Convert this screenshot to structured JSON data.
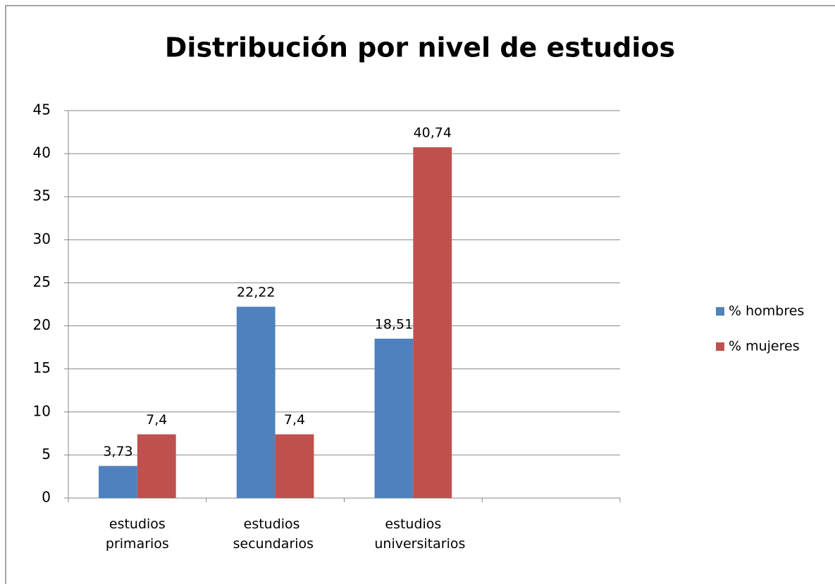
{
  "chart_data": {
    "type": "bar",
    "title": "Distribución por nivel de estudios",
    "categories": [
      "estudios primarios",
      "estudios secundarios",
      "estudios universitarios",
      null
    ],
    "series": [
      {
        "name": "% hombres",
        "color": "#4f81bd",
        "values": [
          3.73,
          22.22,
          18.51,
          null
        ],
        "value_labels": [
          "3,73",
          "22,22",
          "18,51",
          null
        ]
      },
      {
        "name": "% mujeres",
        "color": "#c0504d",
        "values": [
          7.4,
          7.4,
          40.74,
          null
        ],
        "value_labels": [
          "7,4",
          "7,4",
          "40,74",
          null
        ]
      }
    ],
    "ylim": [
      0,
      45
    ],
    "yticks": [
      0,
      5,
      10,
      15,
      20,
      25,
      30,
      35,
      40,
      45
    ],
    "grid": true,
    "legend": "right"
  }
}
